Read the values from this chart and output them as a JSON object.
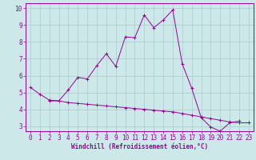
{
  "xlabel": "Windchill (Refroidissement éolien,°C)",
  "ylabel": "",
  "background_color": "#cde8e8",
  "grid_color": "#aacccc",
  "line_color": "#990099",
  "axis_color": "#990099",
  "x": [
    0,
    1,
    2,
    3,
    4,
    5,
    6,
    7,
    8,
    9,
    10,
    11,
    12,
    13,
    14,
    15,
    16,
    17,
    18,
    19,
    20,
    21,
    22,
    23
  ],
  "line1_y": [
    5.3,
    4.9,
    4.55,
    4.5,
    5.15,
    5.9,
    5.8,
    6.6,
    7.3,
    6.55,
    8.3,
    8.25,
    9.6,
    8.85,
    9.3,
    9.9,
    6.7,
    5.25,
    3.5,
    2.95,
    2.7,
    3.2,
    3.3,
    null
  ],
  "line2_y": [
    null,
    null,
    4.5,
    4.5,
    4.4,
    4.35,
    4.3,
    4.25,
    4.2,
    4.15,
    4.1,
    4.05,
    4.0,
    3.95,
    3.9,
    3.85,
    3.75,
    3.65,
    3.55,
    3.45,
    3.35,
    3.25,
    3.2,
    3.2
  ],
  "ylim": [
    2.7,
    10.3
  ],
  "xlim": [
    -0.5,
    23.5
  ],
  "yticks": [
    3,
    4,
    5,
    6,
    7,
    8,
    9,
    10
  ],
  "xticks": [
    0,
    1,
    2,
    3,
    4,
    5,
    6,
    7,
    8,
    9,
    10,
    11,
    12,
    13,
    14,
    15,
    16,
    17,
    18,
    19,
    20,
    21,
    22,
    23
  ],
  "tick_fontsize": 5.5,
  "xlabel_fontsize": 5.5,
  "marker_size": 2.5,
  "linewidth": 0.7
}
